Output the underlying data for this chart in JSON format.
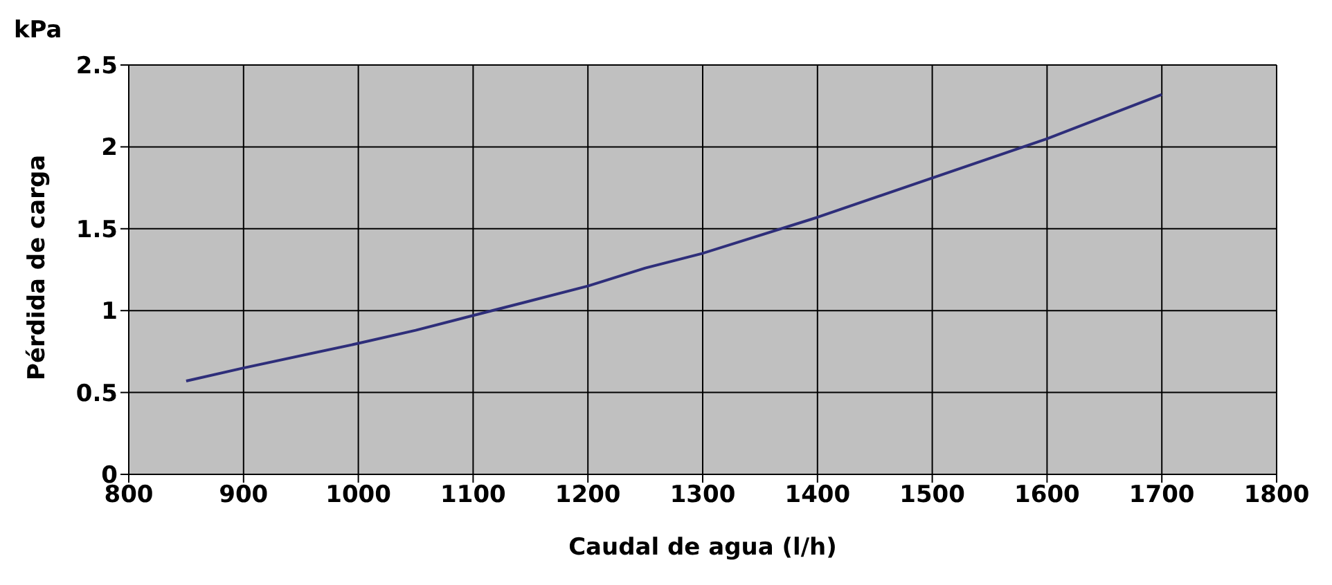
{
  "chart_data": {
    "type": "line",
    "xlabel": "Caudal de agua (l/h)",
    "ylabel": "Pérdida de carga",
    "annotations": [
      "kPa"
    ],
    "x": [
      850,
      900,
      1000,
      1050,
      1100,
      1200,
      1250,
      1300,
      1400,
      1500,
      1600,
      1700
    ],
    "series": [
      {
        "color": "#2e2e7a",
        "values": [
          0.57,
          0.65,
          0.8,
          0.88,
          0.97,
          1.15,
          1.26,
          1.35,
          1.57,
          1.81,
          2.05,
          2.32
        ]
      }
    ],
    "xlim": [
      800,
      1800
    ],
    "xticks": [
      800,
      900,
      1000,
      1100,
      1200,
      1300,
      1400,
      1500,
      1600,
      1700,
      1800
    ],
    "ylim": [
      0,
      2.5
    ],
    "yticks": [
      0,
      0.5,
      1,
      1.5,
      2,
      2.5
    ],
    "grid": true,
    "legend": false,
    "marker": "none",
    "line_style": "solid"
  }
}
